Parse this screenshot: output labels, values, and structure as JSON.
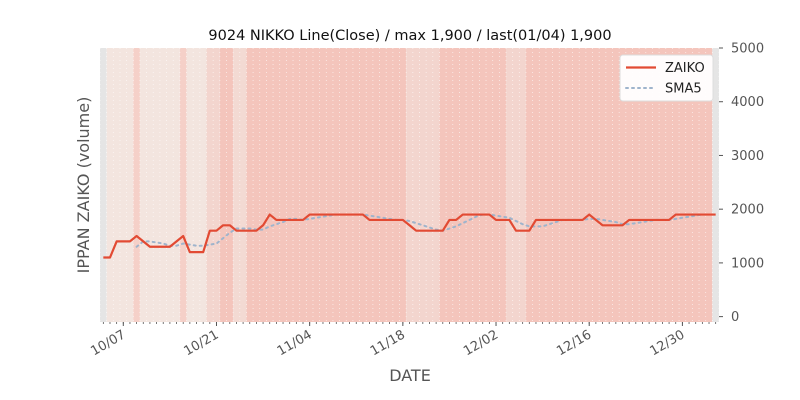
{
  "chart_data": {
    "type": "line",
    "title": "9024 NIKKO Line(Close) / max 1,900 / last(01/04) 1,900",
    "xlabel": "DATE",
    "ylabel": "IPPAN ZAIKO (volume)",
    "x_start": "2019-10-04",
    "x_end": "2020-01-04",
    "y_range": [
      -100,
      5000
    ],
    "yticks": [
      0,
      1000,
      2000,
      3000,
      4000,
      5000
    ],
    "xticks": [
      {
        "label": "10/07",
        "date": "2019-10-07"
      },
      {
        "label": "10/21",
        "date": "2019-10-21"
      },
      {
        "label": "11/04",
        "date": "2019-11-04"
      },
      {
        "label": "11/18",
        "date": "2019-11-18"
      },
      {
        "label": "12/02",
        "date": "2019-12-02"
      },
      {
        "label": "12/16",
        "date": "2019-12-16"
      },
      {
        "label": "12/30",
        "date": "2019-12-30"
      }
    ],
    "legend_position": "top-right",
    "series": [
      {
        "name": "ZAIKO",
        "color": "#E24A33",
        "style": "solid",
        "points": [
          [
            "2019-10-04",
            1100
          ],
          [
            "2019-10-05",
            1100
          ],
          [
            "2019-10-06",
            1400
          ],
          [
            "2019-10-07",
            1400
          ],
          [
            "2019-10-08",
            1400
          ],
          [
            "2019-10-09",
            1500
          ],
          [
            "2019-10-10",
            1400
          ],
          [
            "2019-10-11",
            1300
          ],
          [
            "2019-10-12",
            1300
          ],
          [
            "2019-10-13",
            1300
          ],
          [
            "2019-10-14",
            1300
          ],
          [
            "2019-10-15",
            1400
          ],
          [
            "2019-10-16",
            1500
          ],
          [
            "2019-10-17",
            1200
          ],
          [
            "2019-10-18",
            1200
          ],
          [
            "2019-10-19",
            1200
          ],
          [
            "2019-10-20",
            1600
          ],
          [
            "2019-10-21",
            1600
          ],
          [
            "2019-10-22",
            1700
          ],
          [
            "2019-10-23",
            1700
          ],
          [
            "2019-10-24",
            1600
          ],
          [
            "2019-10-25",
            1600
          ],
          [
            "2019-10-26",
            1600
          ],
          [
            "2019-10-27",
            1600
          ],
          [
            "2019-10-28",
            1700
          ],
          [
            "2019-10-29",
            1900
          ],
          [
            "2019-10-30",
            1800
          ],
          [
            "2019-10-31",
            1800
          ],
          [
            "2019-11-01",
            1800
          ],
          [
            "2019-11-02",
            1800
          ],
          [
            "2019-11-03",
            1800
          ],
          [
            "2019-11-04",
            1900
          ],
          [
            "2019-11-05",
            1900
          ],
          [
            "2019-11-06",
            1900
          ],
          [
            "2019-11-07",
            1900
          ],
          [
            "2019-11-08",
            1900
          ],
          [
            "2019-11-09",
            1900
          ],
          [
            "2019-11-10",
            1900
          ],
          [
            "2019-11-11",
            1900
          ],
          [
            "2019-11-12",
            1900
          ],
          [
            "2019-11-13",
            1800
          ],
          [
            "2019-11-14",
            1800
          ],
          [
            "2019-11-15",
            1800
          ],
          [
            "2019-11-16",
            1800
          ],
          [
            "2019-11-17",
            1800
          ],
          [
            "2019-11-18",
            1800
          ],
          [
            "2019-11-19",
            1700
          ],
          [
            "2019-11-20",
            1600
          ],
          [
            "2019-11-21",
            1600
          ],
          [
            "2019-11-22",
            1600
          ],
          [
            "2019-11-23",
            1600
          ],
          [
            "2019-11-24",
            1600
          ],
          [
            "2019-11-25",
            1800
          ],
          [
            "2019-11-26",
            1800
          ],
          [
            "2019-11-27",
            1900
          ],
          [
            "2019-11-28",
            1900
          ],
          [
            "2019-11-29",
            1900
          ],
          [
            "2019-11-30",
            1900
          ],
          [
            "2019-12-01",
            1900
          ],
          [
            "2019-12-02",
            1800
          ],
          [
            "2019-12-03",
            1800
          ],
          [
            "2019-12-04",
            1800
          ],
          [
            "2019-12-05",
            1600
          ],
          [
            "2019-12-06",
            1600
          ],
          [
            "2019-12-07",
            1600
          ],
          [
            "2019-12-08",
            1800
          ],
          [
            "2019-12-09",
            1800
          ],
          [
            "2019-12-10",
            1800
          ],
          [
            "2019-12-11",
            1800
          ],
          [
            "2019-12-12",
            1800
          ],
          [
            "2019-12-13",
            1800
          ],
          [
            "2019-12-14",
            1800
          ],
          [
            "2019-12-15",
            1800
          ],
          [
            "2019-12-16",
            1900
          ],
          [
            "2019-12-17",
            1800
          ],
          [
            "2019-12-18",
            1700
          ],
          [
            "2019-12-19",
            1700
          ],
          [
            "2019-12-20",
            1700
          ],
          [
            "2019-12-21",
            1700
          ],
          [
            "2019-12-22",
            1800
          ],
          [
            "2019-12-23",
            1800
          ],
          [
            "2019-12-24",
            1800
          ],
          [
            "2019-12-25",
            1800
          ],
          [
            "2019-12-26",
            1800
          ],
          [
            "2019-12-27",
            1800
          ],
          [
            "2019-12-28",
            1800
          ],
          [
            "2019-12-29",
            1900
          ],
          [
            "2019-12-30",
            1900
          ],
          [
            "2019-12-31",
            1900
          ],
          [
            "2020-01-01",
            1900
          ],
          [
            "2020-01-02",
            1900
          ],
          [
            "2020-01-03",
            1900
          ],
          [
            "2020-01-04",
            1900
          ]
        ]
      },
      {
        "name": "SMA5",
        "color": "#9FB4CC",
        "style": "dotted",
        "points": [
          [
            "2019-10-09",
            1300
          ],
          [
            "2019-10-10",
            1400
          ],
          [
            "2019-10-11",
            1400
          ],
          [
            "2019-10-12",
            1380
          ],
          [
            "2019-10-13",
            1360
          ],
          [
            "2019-10-14",
            1320
          ],
          [
            "2019-10-15",
            1320
          ],
          [
            "2019-10-16",
            1360
          ],
          [
            "2019-10-17",
            1340
          ],
          [
            "2019-10-18",
            1320
          ],
          [
            "2019-10-19",
            1320
          ],
          [
            "2019-10-20",
            1340
          ],
          [
            "2019-10-21",
            1360
          ],
          [
            "2019-10-22",
            1460
          ],
          [
            "2019-10-23",
            1560
          ],
          [
            "2019-10-24",
            1640
          ],
          [
            "2019-10-25",
            1640
          ],
          [
            "2019-10-26",
            1640
          ],
          [
            "2019-10-27",
            1620
          ],
          [
            "2019-10-28",
            1620
          ],
          [
            "2019-10-29",
            1680
          ],
          [
            "2019-10-30",
            1720
          ],
          [
            "2019-10-31",
            1760
          ],
          [
            "2019-11-01",
            1820
          ],
          [
            "2019-11-02",
            1820
          ],
          [
            "2019-11-03",
            1800
          ],
          [
            "2019-11-04",
            1820
          ],
          [
            "2019-11-05",
            1840
          ],
          [
            "2019-11-06",
            1860
          ],
          [
            "2019-11-07",
            1880
          ],
          [
            "2019-11-08",
            1900
          ],
          [
            "2019-11-09",
            1900
          ],
          [
            "2019-11-10",
            1900
          ],
          [
            "2019-11-11",
            1900
          ],
          [
            "2019-11-12",
            1900
          ],
          [
            "2019-11-13",
            1880
          ],
          [
            "2019-11-14",
            1860
          ],
          [
            "2019-11-15",
            1840
          ],
          [
            "2019-11-16",
            1820
          ],
          [
            "2019-11-17",
            1800
          ],
          [
            "2019-11-18",
            1800
          ],
          [
            "2019-11-19",
            1780
          ],
          [
            "2019-11-20",
            1740
          ],
          [
            "2019-11-21",
            1700
          ],
          [
            "2019-11-22",
            1660
          ],
          [
            "2019-11-23",
            1620
          ],
          [
            "2019-11-24",
            1600
          ],
          [
            "2019-11-25",
            1640
          ],
          [
            "2019-11-26",
            1680
          ],
          [
            "2019-11-27",
            1740
          ],
          [
            "2019-11-28",
            1800
          ],
          [
            "2019-11-29",
            1860
          ],
          [
            "2019-11-30",
            1900
          ],
          [
            "2019-12-01",
            1900
          ],
          [
            "2019-12-02",
            1880
          ],
          [
            "2019-12-03",
            1860
          ],
          [
            "2019-12-04",
            1840
          ],
          [
            "2019-12-05",
            1780
          ],
          [
            "2019-12-06",
            1720
          ],
          [
            "2019-12-07",
            1680
          ],
          [
            "2019-12-08",
            1680
          ],
          [
            "2019-12-09",
            1680
          ],
          [
            "2019-12-10",
            1720
          ],
          [
            "2019-12-11",
            1760
          ],
          [
            "2019-12-12",
            1800
          ],
          [
            "2019-12-13",
            1800
          ],
          [
            "2019-12-14",
            1800
          ],
          [
            "2019-12-15",
            1800
          ],
          [
            "2019-12-16",
            1820
          ],
          [
            "2019-12-17",
            1820
          ],
          [
            "2019-12-18",
            1800
          ],
          [
            "2019-12-19",
            1780
          ],
          [
            "2019-12-20",
            1760
          ],
          [
            "2019-12-21",
            1720
          ],
          [
            "2019-12-22",
            1720
          ],
          [
            "2019-12-23",
            1740
          ],
          [
            "2019-12-24",
            1760
          ],
          [
            "2019-12-25",
            1780
          ],
          [
            "2019-12-26",
            1800
          ],
          [
            "2019-12-27",
            1800
          ],
          [
            "2019-12-28",
            1800
          ],
          [
            "2019-12-29",
            1820
          ],
          [
            "2019-12-30",
            1840
          ],
          [
            "2019-12-31",
            1860
          ],
          [
            "2020-01-01",
            1880
          ],
          [
            "2020-01-02",
            1900
          ],
          [
            "2020-01-03",
            1900
          ],
          [
            "2020-01-04",
            1900
          ]
        ]
      }
    ],
    "background_bands": [
      {
        "start": "2019-10-04",
        "end": "2019-10-05",
        "color": "#E5E5E5"
      },
      {
        "start": "2019-10-05",
        "end": "2019-10-09",
        "color": "#F3E5DF"
      },
      {
        "start": "2019-10-09",
        "end": "2019-10-10",
        "color": "#F5D0C8"
      },
      {
        "start": "2019-10-10",
        "end": "2019-10-16",
        "color": "#F3E5DF"
      },
      {
        "start": "2019-10-16",
        "end": "2019-10-17",
        "color": "#F5D0C8"
      },
      {
        "start": "2019-10-17",
        "end": "2019-10-20",
        "color": "#F3E5DF"
      },
      {
        "start": "2019-10-20",
        "end": "2019-10-22",
        "color": "#F3D5CE"
      },
      {
        "start": "2019-10-22",
        "end": "2019-10-24",
        "color": "#F4C5BC"
      },
      {
        "start": "2019-10-24",
        "end": "2019-10-26",
        "color": "#F3DAD3"
      },
      {
        "start": "2019-10-26",
        "end": "2019-11-19",
        "color": "#F4C5BC"
      },
      {
        "start": "2019-11-19",
        "end": "2019-11-24",
        "color": "#F3D5CE"
      },
      {
        "start": "2019-11-24",
        "end": "2019-12-04",
        "color": "#F4C5BC"
      },
      {
        "start": "2019-12-04",
        "end": "2019-12-07",
        "color": "#F3D5CE"
      },
      {
        "start": "2019-12-07",
        "end": "2020-01-04",
        "color": "#F4C5BC"
      },
      {
        "start": "2020-01-04",
        "end": "2020-01-05",
        "color": "#E5E5E5"
      }
    ]
  }
}
